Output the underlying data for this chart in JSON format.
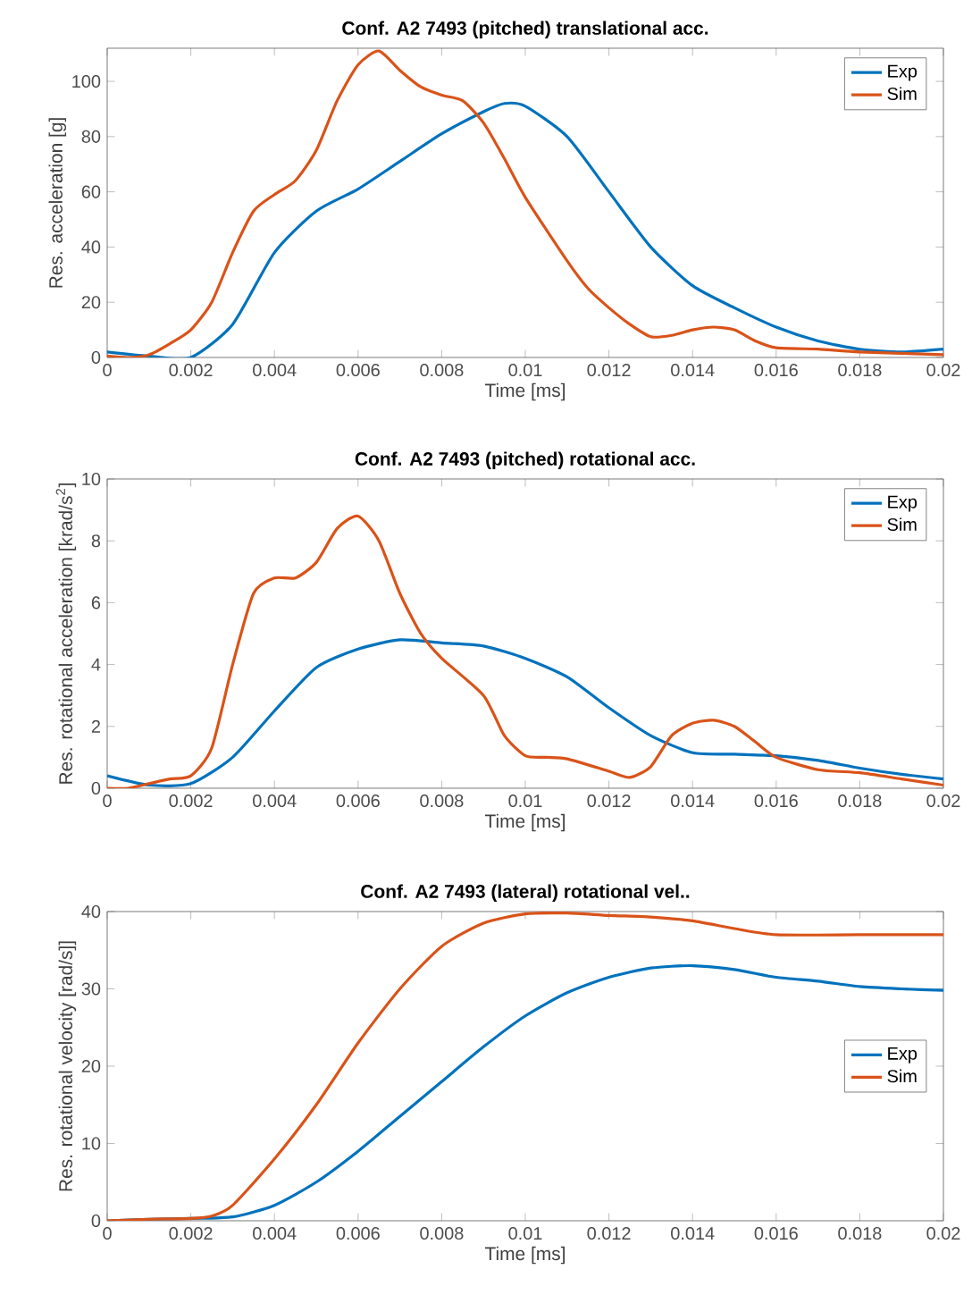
{
  "chart_data": [
    {
      "type": "line",
      "title": "Conf. A2 7493 (pitched) translational acc.",
      "xlabel": "Time [ms]",
      "ylabel": "Res. acceleration [g]",
      "xlim": [
        0,
        0.02
      ],
      "ylim": [
        0,
        112
      ],
      "xticks": [
        0,
        0.002,
        0.004,
        0.006,
        0.008,
        0.01,
        0.012,
        0.014,
        0.016,
        0.018,
        0.02
      ],
      "yticks": [
        0,
        20,
        40,
        60,
        80,
        100
      ],
      "legend": "top right",
      "grid": false,
      "series": [
        {
          "name": "Exp",
          "color": "#0072bd",
          "x": [
            0,
            0.001,
            0.002,
            0.003,
            0.004,
            0.005,
            0.006,
            0.007,
            0.008,
            0.009,
            0.0095,
            0.01,
            0.011,
            0.012,
            0.013,
            0.014,
            0.015,
            0.016,
            0.017,
            0.018,
            0.019,
            0.02
          ],
          "values": [
            2,
            0.5,
            0,
            12,
            38,
            53,
            61,
            71,
            81,
            89,
            92,
            91,
            80,
            60,
            40,
            26,
            18,
            11,
            6,
            3,
            2,
            3
          ]
        },
        {
          "name": "Sim",
          "color": "#d95319",
          "x": [
            0,
            0.0005,
            0.001,
            0.0015,
            0.002,
            0.0025,
            0.003,
            0.0035,
            0.004,
            0.0045,
            0.005,
            0.0055,
            0.006,
            0.0065,
            0.007,
            0.0075,
            0.008,
            0.0085,
            0.009,
            0.0095,
            0.01,
            0.011,
            0.0115,
            0.012,
            0.0125,
            0.013,
            0.0135,
            0.014,
            0.0145,
            0.015,
            0.0155,
            0.016,
            0.017,
            0.018,
            0.02
          ],
          "values": [
            0.5,
            0,
            1,
            5,
            10,
            20,
            38,
            53,
            59,
            64,
            75,
            93,
            106,
            111,
            104,
            98,
            95,
            93,
            85,
            72,
            58,
            35,
            25,
            18,
            12,
            7.5,
            8,
            10,
            11,
            10,
            6,
            3.5,
            3,
            2,
            1
          ]
        }
      ]
    },
    {
      "type": "line",
      "title": "Conf. A2 7493 (pitched) rotational acc.",
      "xlabel": "Time [ms]",
      "ylabel": "Res. rotational acceleration [krad/s$^{2}$]",
      "xlim": [
        0,
        0.02
      ],
      "ylim": [
        0,
        10
      ],
      "xticks": [
        0,
        0.002,
        0.004,
        0.006,
        0.008,
        0.01,
        0.012,
        0.014,
        0.016,
        0.018,
        0.02
      ],
      "yticks": [
        0,
        2,
        4,
        6,
        8,
        10
      ],
      "legend": "top right",
      "grid": false,
      "series": [
        {
          "name": "Exp",
          "color": "#0072bd",
          "x": [
            0,
            0.001,
            0.002,
            0.003,
            0.004,
            0.005,
            0.006,
            0.007,
            0.008,
            0.009,
            0.01,
            0.011,
            0.012,
            0.013,
            0.014,
            0.015,
            0.016,
            0.017,
            0.018,
            0.019,
            0.02
          ],
          "values": [
            0.4,
            0.1,
            0.15,
            1,
            2.5,
            3.9,
            4.5,
            4.8,
            4.7,
            4.6,
            4.2,
            3.6,
            2.6,
            1.7,
            1.15,
            1.1,
            1.05,
            0.9,
            0.65,
            0.45,
            0.3
          ]
        },
        {
          "name": "Sim",
          "color": "#d95319",
          "x": [
            0,
            0.0005,
            0.001,
            0.0015,
            0.002,
            0.0025,
            0.003,
            0.0035,
            0.004,
            0.0045,
            0.005,
            0.0055,
            0.006,
            0.0065,
            0.007,
            0.0075,
            0.008,
            0.009,
            0.0095,
            0.01,
            0.0105,
            0.011,
            0.012,
            0.0125,
            0.013,
            0.0135,
            0.014,
            0.0145,
            0.015,
            0.0155,
            0.016,
            0.017,
            0.018,
            0.019,
            0.02
          ],
          "values": [
            0,
            0,
            0.15,
            0.3,
            0.4,
            1.3,
            4,
            6.3,
            6.8,
            6.8,
            7.3,
            8.4,
            8.8,
            8,
            6.3,
            5,
            4.2,
            3,
            1.7,
            1.05,
            1,
            0.95,
            0.55,
            0.35,
            0.7,
            1.7,
            2.1,
            2.2,
            2,
            1.5,
            1,
            0.6,
            0.5,
            0.3,
            0.1
          ]
        }
      ]
    },
    {
      "type": "line",
      "title": "Conf. A2 7493 (lateral) rotational vel..",
      "xlabel": "Time [ms]",
      "ylabel": "Res. rotational velocity [rad/s]]",
      "xlim": [
        0,
        0.02
      ],
      "ylim": [
        0,
        40
      ],
      "xticks": [
        0,
        0.002,
        0.004,
        0.006,
        0.008,
        0.01,
        0.012,
        0.014,
        0.016,
        0.018,
        0.02
      ],
      "yticks": [
        0,
        10,
        20,
        30,
        40
      ],
      "legend": "right",
      "grid": false,
      "series": [
        {
          "name": "Exp",
          "color": "#0072bd",
          "x": [
            0,
            0.001,
            0.002,
            0.003,
            0.004,
            0.005,
            0.006,
            0.007,
            0.008,
            0.009,
            0.01,
            0.011,
            0.012,
            0.013,
            0.014,
            0.015,
            0.016,
            0.017,
            0.018,
            0.019,
            0.02
          ],
          "values": [
            0,
            0.2,
            0.3,
            0.5,
            2,
            5,
            9,
            13.5,
            18,
            22.5,
            26.5,
            29.5,
            31.5,
            32.7,
            33,
            32.5,
            31.5,
            31,
            30.3,
            30,
            29.8
          ]
        },
        {
          "name": "Sim",
          "color": "#d95319",
          "x": [
            0,
            0.001,
            0.002,
            0.0025,
            0.003,
            0.004,
            0.005,
            0.006,
            0.007,
            0.008,
            0.009,
            0.01,
            0.011,
            0.012,
            0.013,
            0.014,
            0.015,
            0.016,
            0.018,
            0.02
          ],
          "values": [
            0,
            0.2,
            0.3,
            0.6,
            2,
            8,
            15,
            23,
            30,
            35.5,
            38.5,
            39.7,
            39.8,
            39.5,
            39.3,
            38.8,
            37.8,
            37,
            37,
            37
          ]
        }
      ]
    }
  ]
}
